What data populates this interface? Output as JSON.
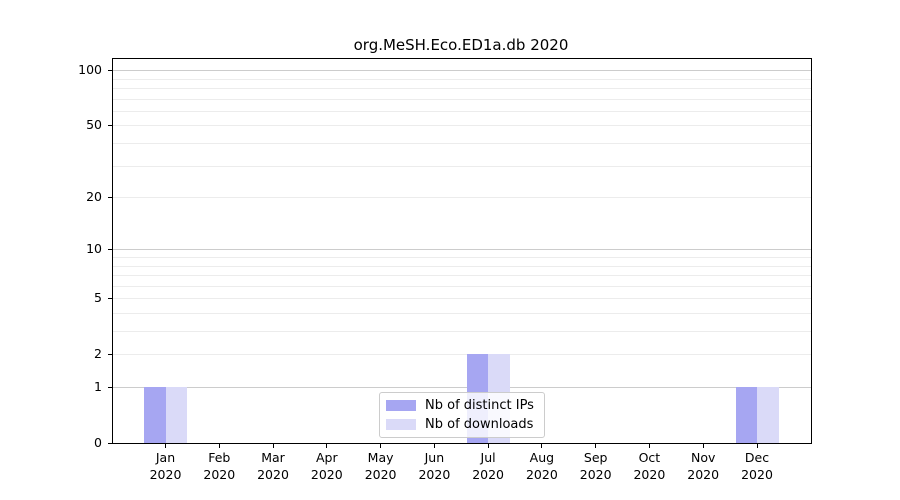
{
  "chart_data": {
    "type": "bar",
    "title": "org.MeSH.Eco.ED1a.db 2020",
    "x_categories_line1": [
      "Jan",
      "Feb",
      "Mar",
      "Apr",
      "May",
      "Jun",
      "Jul",
      "Aug",
      "Sep",
      "Oct",
      "Nov",
      "Dec"
    ],
    "x_categories_line2": [
      "2020",
      "2020",
      "2020",
      "2020",
      "2020",
      "2020",
      "2020",
      "2020",
      "2020",
      "2020",
      "2020",
      "2020"
    ],
    "series": [
      {
        "name": "Nb of distinct IPs",
        "color": "#a6a6f2",
        "values": [
          1,
          0,
          0,
          0,
          0,
          0,
          2,
          0,
          0,
          0,
          0,
          1
        ]
      },
      {
        "name": "Nb of downloads",
        "color": "#dadaf8",
        "values": [
          1,
          0,
          0,
          0,
          0,
          0,
          2,
          0,
          0,
          0,
          0,
          1
        ]
      }
    ],
    "y_axis": {
      "scale": "log10(1+x)",
      "tick_values": [
        0,
        1,
        2,
        5,
        10,
        20,
        50,
        100
      ],
      "tick_labels": [
        "0",
        "1",
        "2",
        "5",
        "10",
        "20",
        "50",
        "100"
      ],
      "major_gridlines": [
        1,
        10,
        100
      ],
      "minor_gridlines": [
        2,
        3,
        4,
        5,
        6,
        7,
        8,
        9,
        20,
        30,
        40,
        50,
        60,
        70,
        80,
        90
      ],
      "ymin": 0,
      "ymax": 115,
      "grid": "on"
    },
    "legend": {
      "position": "bottom-center",
      "entries": [
        "Nb of distinct IPs",
        "Nb of downloads"
      ]
    },
    "colors": {
      "distinct_ips": "#a6a6f2",
      "downloads": "#dadaf8",
      "grid_major": "#cccccc",
      "grid_minor": "#ececec",
      "spine": "#000000",
      "legend_border": "#cccccc",
      "text": "#000000",
      "background": "#ffffff"
    }
  }
}
